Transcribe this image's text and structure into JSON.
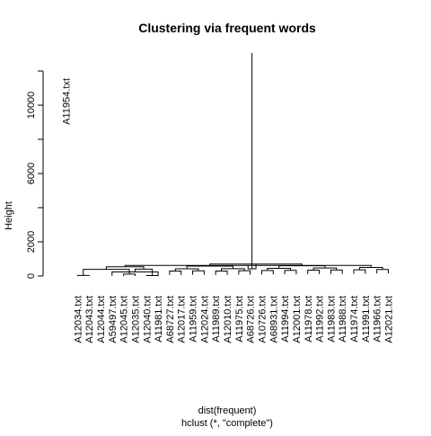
{
  "chart_data": {
    "type": "dendrogram",
    "title": "Clustering via frequent words",
    "ylabel": "Height",
    "xlabel": "dist(frequent)",
    "sub": "hclust (*, \"complete\")",
    "ylim": [
      0,
      13000
    ],
    "yticks": [
      0,
      2000,
      6000,
      10000
    ],
    "leaf_order": [
      "A11954.txt",
      "A12034.txt",
      "A12043.txt",
      "A12044.txt",
      "A59497.txt",
      "A12045.txt",
      "A12035.txt",
      "A12040.txt",
      "A11981.txt",
      "A68727.txt",
      "A12017.txt",
      "A11959.txt",
      "A12024.txt",
      "A11989.txt",
      "A12010.txt",
      "A11975.txt",
      "A68726.txt",
      "A10726.txt",
      "A68931.txt",
      "A11994.txt",
      "A12001.txt",
      "A11978.txt",
      "A11992.txt",
      "A11983.txt",
      "A11988.txt",
      "A11974.txt",
      "A11991.txt",
      "A11966.txt",
      "A12021.txt"
    ],
    "merges": [
      [
        2,
        3,
        30
      ],
      [
        6,
        7,
        110
      ],
      [
        5,
        9,
        240
      ],
      [
        8,
        9,
        25
      ],
      [
        10,
        11,
        290
      ],
      [
        12,
        13,
        300
      ],
      [
        14,
        15,
        290
      ],
      [
        16,
        17,
        310
      ],
      [
        18,
        19,
        320
      ],
      [
        20,
        21,
        330
      ],
      [
        22,
        23,
        340
      ],
      [
        24,
        25,
        350
      ],
      [
        26,
        27,
        360
      ],
      [
        28,
        29,
        380
      ],
      [
        30,
        31,
        390
      ],
      [
        32,
        33,
        400
      ],
      [
        34,
        35,
        420
      ],
      [
        36,
        37,
        430
      ],
      [
        38,
        39,
        450
      ],
      [
        40,
        41,
        470
      ],
      [
        42,
        43,
        500
      ],
      [
        44,
        45,
        540
      ],
      [
        46,
        47,
        580
      ],
      [
        48,
        49,
        600
      ],
      [
        50,
        51,
        620
      ],
      [
        52,
        53,
        700
      ],
      [
        54,
        55,
        420
      ],
      [
        56,
        57,
        13050
      ]
    ]
  }
}
